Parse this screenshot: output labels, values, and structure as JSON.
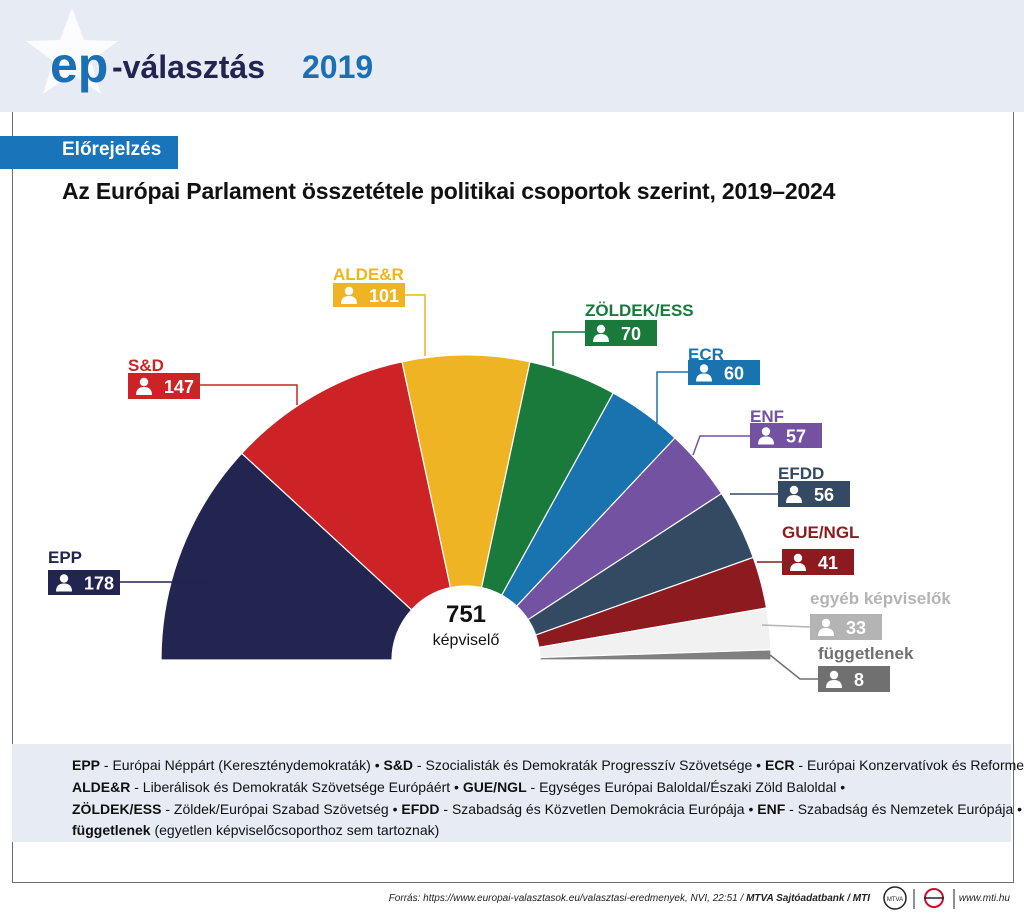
{
  "header": {
    "logo_ep": "ep",
    "logo_text": "-választás",
    "logo_year": "2019"
  },
  "badge": "Előrejelzés",
  "title": "Az Európai Parlament összetétele politikai csoportok szerint, 2019–2024",
  "chart_data": {
    "type": "pie",
    "subtype": "parliament-semicircle",
    "title": "Az Európai Parlament összetétele politikai csoportok szerint, 2019–2024",
    "total_value": "751",
    "total_label": "képviselő",
    "series": [
      {
        "name": "EPP",
        "value": 178,
        "color": "#232551"
      },
      {
        "name": "S&D",
        "value": 147,
        "color": "#cd2326"
      },
      {
        "name": "ALDE&R",
        "value": 101,
        "color": "#eeb423"
      },
      {
        "name": "ZÖLDEK/ESS",
        "value": 70,
        "color": "#197a3c"
      },
      {
        "name": "ECR",
        "value": 60,
        "color": "#1873ae"
      },
      {
        "name": "ENF",
        "value": 57,
        "color": "#7452a2"
      },
      {
        "name": "EFDD",
        "value": 56,
        "color": "#344a62"
      },
      {
        "name": "GUE/NGL",
        "value": 41,
        "color": "#8c1a1e"
      },
      {
        "name": "egyéb képviselők",
        "value": 33,
        "color": "#f1f1f1",
        "label_color": "#b4b4b4"
      },
      {
        "name": "függetlenek",
        "value": 8,
        "color": "#808080",
        "label_color": "#707070"
      }
    ]
  },
  "legend": {
    "lines": [
      [
        {
          "abbr": "EPP",
          "desc": " - Európai Néppárt (Kereszténydemokraták) • "
        },
        {
          "abbr": "S&D",
          "desc": " - Szocialisták és Demokraták Progresszív Szövetsége • "
        },
        {
          "abbr": "ECR",
          "desc": " - Európai Konzervatívok és Reformerek"
        }
      ],
      [
        {
          "abbr": "ALDE&R",
          "desc": " - Liberálisok és Demokraták Szövetsége Európáért • "
        },
        {
          "abbr": "GUE/NGL",
          "desc": " - Egységes Európai Baloldal/Északi Zöld Baloldal •"
        }
      ],
      [
        {
          "abbr": "ZÖLDEK/ESS",
          "desc": " - Zöldek/Európai Szabad Szövetség • "
        },
        {
          "abbr": "EFDD",
          "desc": " - Szabadság és Közvetlen Demokrácia Európája • "
        },
        {
          "abbr": "ENF",
          "desc": " - Szabadság és Nemzetek Európája •"
        }
      ],
      [
        {
          "abbr": "függetlenek",
          "desc": " (egyetlen képviselőcsoporthoz sem tartoznak)"
        }
      ]
    ]
  },
  "footer": {
    "source_prefix": "Forrás: https://www.europai-valasztasok.eu/valasztasi-eredmenyek, NVI, 22:51 / ",
    "source_bold": "MTVA Sajtóadatbank / MTI",
    "website": "www.mti.hu",
    "logo_mtva": "MTVA"
  }
}
